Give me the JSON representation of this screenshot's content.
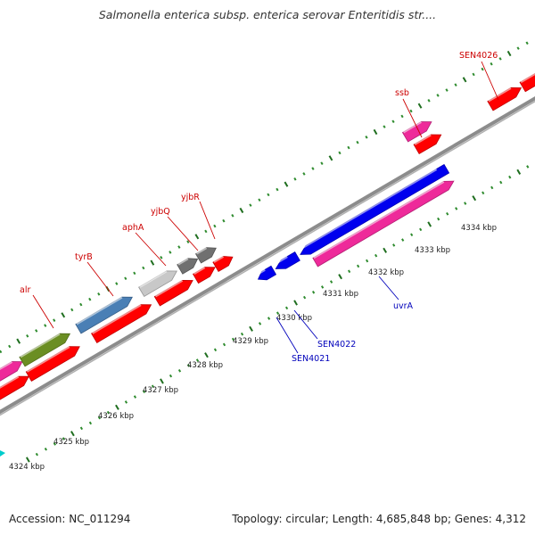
{
  "title": "Salmonella enterica subsp. enterica serovar Enteritidis str....",
  "footer": {
    "accession": "Accession: NC_011294",
    "summary": "Topology: circular; Length: 4,685,848 bp; Genes: 4,312"
  },
  "colors": {
    "background": "#ffffff",
    "backbone": "#8c8c8c",
    "tick_minor": "#2e8b2e",
    "tick_major": "#1f6e1f",
    "forward_label": "#cc0000",
    "reverse_label": "#0000bb",
    "red": "#ff0000",
    "pink": "#ee2a9a",
    "olive": "#6b8e23",
    "steelblue": "#4a7fb5",
    "lightgray": "#c8c8c8",
    "darkgray": "#707070",
    "blue": "#0000ee",
    "cyan": "#00cccc"
  },
  "kbp_ticks": [
    "4324 kbp",
    "4325 kbp",
    "4326 kbp",
    "4327 kbp",
    "4328 kbp",
    "4329 kbp",
    "4330 kbp",
    "4331 kbp",
    "4332 kbp",
    "4333 kbp",
    "4334 kbp"
  ],
  "genes": [
    {
      "name": "alr",
      "strand": "forward"
    },
    {
      "name": "tyrB",
      "strand": "forward"
    },
    {
      "name": "aphA",
      "strand": "forward"
    },
    {
      "name": "yjbQ",
      "strand": "forward"
    },
    {
      "name": "yjbR",
      "strand": "forward"
    },
    {
      "name": "ssb",
      "strand": "forward"
    },
    {
      "name": "SEN4026",
      "strand": "forward"
    },
    {
      "name": "SEN4021",
      "strand": "reverse"
    },
    {
      "name": "SEN4022",
      "strand": "reverse"
    },
    {
      "name": "uvrA",
      "strand": "reverse"
    }
  ]
}
